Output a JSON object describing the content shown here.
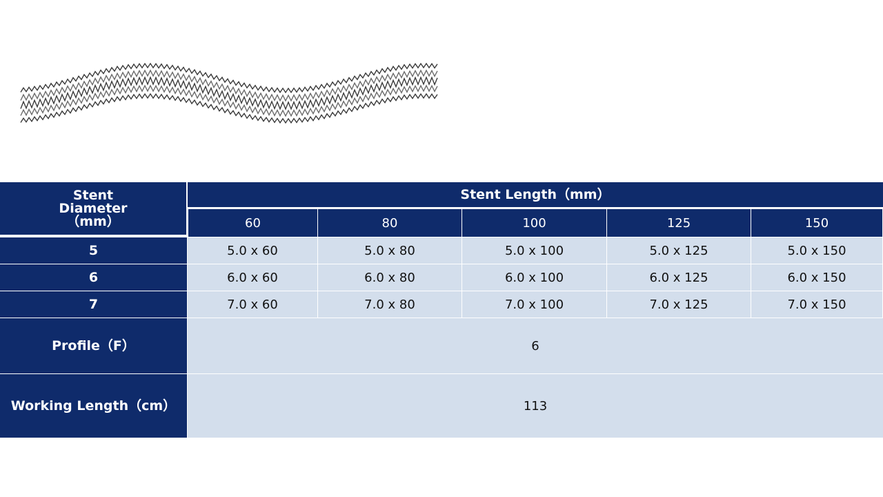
{
  "image": {
    "name": "stent-product-photo"
  },
  "table": {
    "corner_header": "Stent\nDiameter\n(mm)",
    "corner_lines": [
      "Stent",
      "Diameter",
      "（mm）"
    ],
    "length_header": "Stent Length（mm）",
    "lengths": [
      "60",
      "80",
      "100",
      "125",
      "150"
    ],
    "rows": [
      {
        "diameter": "5",
        "cells": [
          "5.0 x 60",
          "5.0 x 80",
          "5.0 x 100",
          "5.0 x 125",
          "5.0 x 150"
        ]
      },
      {
        "diameter": "6",
        "cells": [
          "6.0 x 60",
          "6.0 x 80",
          "6.0 x 100",
          "6.0 x 125",
          "6.0 x 150"
        ]
      },
      {
        "diameter": "7",
        "cells": [
          "7.0 x 60",
          "7.0 x 80",
          "7.0 x 100",
          "7.0 x 125",
          "7.0 x 150"
        ]
      }
    ],
    "profile_label": "Profile（F）",
    "profile_value": "6",
    "working_length_label": "Working Length（cm）",
    "working_length_value": "113"
  },
  "colors": {
    "header": "#0f2b6b",
    "cell": "#d3deec"
  }
}
